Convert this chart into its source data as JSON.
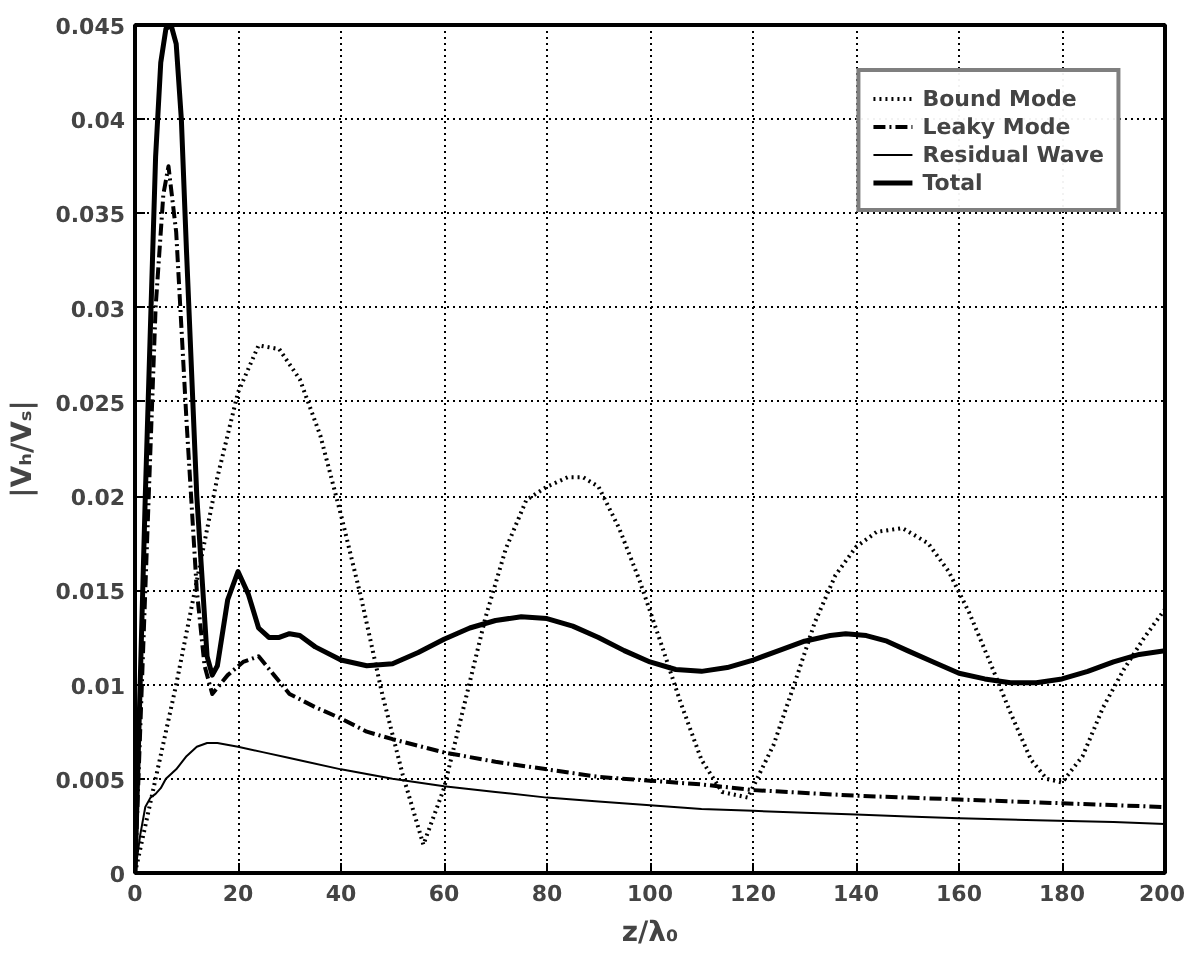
{
  "chart_data": {
    "type": "line",
    "xlabel": "z/λ₀",
    "ylabel": "|Vₕ/Vₛ|",
    "xlim": [
      0,
      200
    ],
    "ylim": [
      0,
      0.045
    ],
    "xticks": [
      0,
      20,
      40,
      60,
      80,
      100,
      120,
      140,
      160,
      180,
      200
    ],
    "yticks": [
      0,
      0.005,
      0.01,
      0.015,
      0.02,
      0.025,
      0.03,
      0.035,
      0.04,
      0.045
    ],
    "grid": true,
    "legend": "top right",
    "marker": "none",
    "series": [
      {
        "name": "Bound Mode",
        "color": "#000000",
        "line_style": "dotted",
        "x": [
          0,
          4,
          8,
          12,
          16,
          20,
          24,
          28,
          32,
          36,
          40,
          44,
          48,
          52,
          56,
          60,
          64,
          68,
          72,
          76,
          80,
          84,
          87,
          90,
          94,
          98,
          102,
          106,
          110,
          114,
          119,
          124,
          128,
          132,
          136,
          140,
          144,
          149,
          154,
          158,
          162,
          166,
          170,
          174,
          177,
          180,
          184,
          188,
          192,
          196,
          200
        ],
        "values": [
          0,
          0.005,
          0.01,
          0.0155,
          0.021,
          0.0255,
          0.028,
          0.0278,
          0.0262,
          0.0232,
          0.019,
          0.0145,
          0.0095,
          0.0052,
          0.0015,
          0.0045,
          0.009,
          0.0135,
          0.0172,
          0.0198,
          0.0205,
          0.021,
          0.021,
          0.0205,
          0.0183,
          0.0155,
          0.0123,
          0.009,
          0.006,
          0.0043,
          0.004,
          0.0068,
          0.01,
          0.0133,
          0.0158,
          0.0173,
          0.0181,
          0.0183,
          0.0175,
          0.016,
          0.0138,
          0.0112,
          0.0085,
          0.006,
          0.005,
          0.0048,
          0.0062,
          0.0088,
          0.0108,
          0.0125,
          0.014
        ]
      },
      {
        "name": "Leaky Mode",
        "color": "#000000",
        "line_style": "dashdot",
        "x": [
          0,
          2,
          4,
          5.5,
          6.5,
          8,
          10,
          12,
          13.5,
          15,
          18,
          21,
          24,
          27,
          30,
          35,
          40,
          45,
          50,
          60,
          70,
          80,
          90,
          100,
          110,
          120,
          140,
          160,
          180,
          200
        ],
        "values": [
          0,
          0.015,
          0.03,
          0.036,
          0.0375,
          0.034,
          0.024,
          0.015,
          0.011,
          0.0095,
          0.0105,
          0.0112,
          0.0115,
          0.0105,
          0.0095,
          0.0088,
          0.0082,
          0.0075,
          0.0071,
          0.0064,
          0.0059,
          0.0055,
          0.0051,
          0.0049,
          0.0047,
          0.0044,
          0.0041,
          0.0039,
          0.0037,
          0.0035
        ]
      },
      {
        "name": "Residual Wave",
        "color": "#000000",
        "line_style": "solid",
        "x": [
          0,
          1,
          2,
          3,
          4,
          5,
          6,
          8,
          10,
          12,
          14,
          16,
          20,
          25,
          30,
          40,
          50,
          60,
          70,
          80,
          90,
          100,
          110,
          120,
          130,
          140,
          150,
          160,
          175,
          190,
          200
        ],
        "values": [
          0,
          0.002,
          0.0035,
          0.004,
          0.0042,
          0.0045,
          0.005,
          0.0055,
          0.0062,
          0.0067,
          0.0069,
          0.0069,
          0.0067,
          0.0064,
          0.0061,
          0.0055,
          0.005,
          0.0046,
          0.0043,
          0.004,
          0.0038,
          0.0036,
          0.0034,
          0.0033,
          0.0032,
          0.0031,
          0.003,
          0.0029,
          0.0028,
          0.0027,
          0.0026
        ]
      },
      {
        "name": "Total",
        "color": "#000000",
        "line_style": "solid",
        "x": [
          0,
          2,
          4,
          5,
          6,
          7,
          8,
          9,
          10,
          12,
          14,
          15,
          16,
          18,
          20,
          22,
          24,
          26,
          28,
          30,
          32,
          35,
          40,
          45,
          50,
          55,
          60,
          65,
          70,
          75,
          80,
          85,
          90,
          95,
          100,
          105,
          110,
          115,
          120,
          125,
          130,
          135,
          138,
          142,
          146,
          150,
          155,
          160,
          165,
          170,
          175,
          180,
          185,
          190,
          195,
          200
        ],
        "values": [
          0,
          0.02,
          0.038,
          0.043,
          0.0448,
          0.045,
          0.044,
          0.04,
          0.033,
          0.02,
          0.0115,
          0.0105,
          0.011,
          0.0145,
          0.016,
          0.0148,
          0.013,
          0.0125,
          0.0125,
          0.0127,
          0.0126,
          0.012,
          0.0113,
          0.011,
          0.0111,
          0.0117,
          0.0124,
          0.013,
          0.0134,
          0.0136,
          0.0135,
          0.0131,
          0.0125,
          0.0118,
          0.0112,
          0.0108,
          0.0107,
          0.0109,
          0.0113,
          0.0118,
          0.0123,
          0.0126,
          0.0127,
          0.0126,
          0.0123,
          0.0118,
          0.0112,
          0.0106,
          0.0103,
          0.0101,
          0.0101,
          0.0103,
          0.0107,
          0.0112,
          0.0116,
          0.0118
        ]
      }
    ]
  }
}
